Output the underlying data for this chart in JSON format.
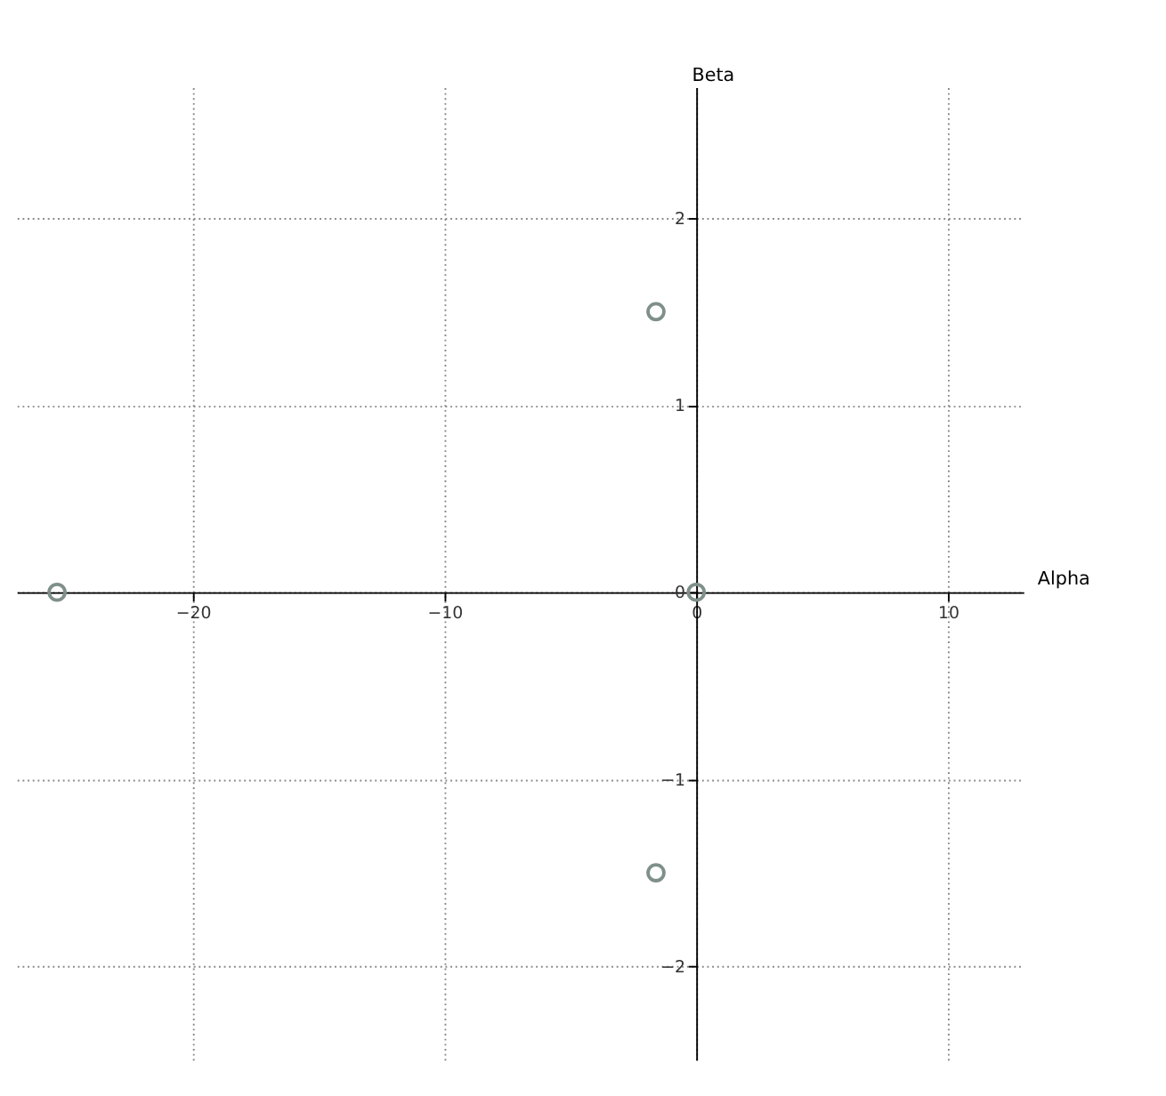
{
  "chart_data": {
    "type": "scatter",
    "xlabel": "Alpha",
    "ylabel": "Beta",
    "x": [
      -25.4,
      -1.6,
      -1.6,
      0
    ],
    "series": [
      {
        "color": "#7f8f8a",
        "values": [
          0,
          1.5,
          -1.5,
          0
        ]
      }
    ],
    "xlim": [
      -27,
      13
    ],
    "ylim": [
      -2.5,
      2.7
    ],
    "xticks": [
      -20,
      -10,
      0,
      10
    ],
    "yticks": [
      -2,
      -1,
      0,
      1,
      2
    ],
    "grid": true,
    "marker": "circle"
  }
}
